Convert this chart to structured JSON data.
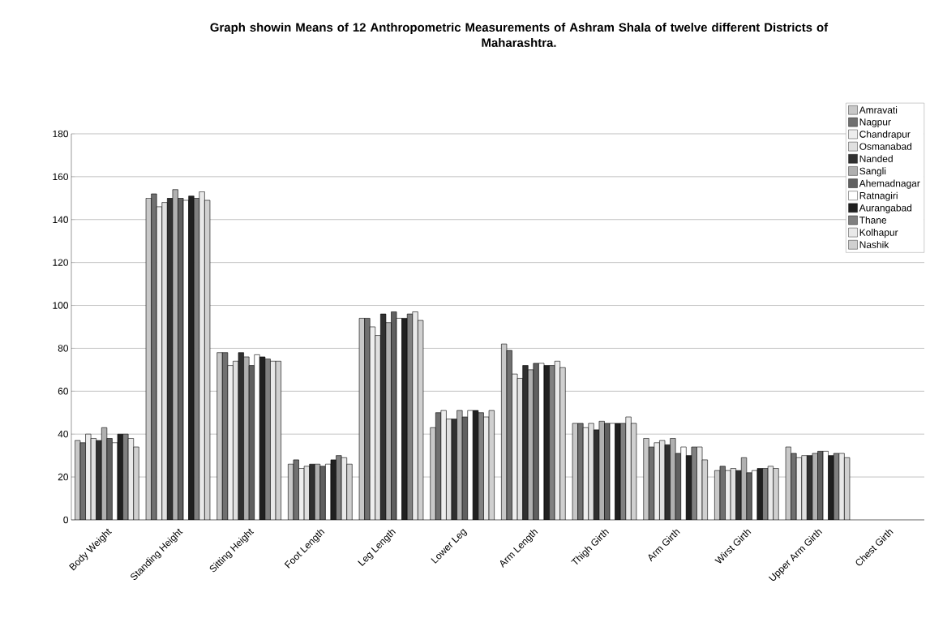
{
  "chart_data": {
    "type": "bar",
    "title": "Graph showin Means of 12 Anthropometric Measurements of  Ashram Shala of twelve different Districts of Maharashtra.",
    "categories": [
      "Body Weight",
      "Standing Height",
      "Sitting Height",
      "Foot Length",
      "Leg Length",
      "Lower Leg",
      "Arm Length",
      "Thigh Girth",
      "Arm Girth",
      "Wirst Girth",
      "Upper Arm Girth",
      "Chest Girth"
    ],
    "series": [
      {
        "name": "Amravati",
        "color": "#c8c8c8",
        "values": [
          37,
          150,
          78,
          26,
          94,
          43,
          82,
          45,
          38,
          23,
          34,
          null
        ]
      },
      {
        "name": "Nagpur",
        "color": "#707070",
        "values": [
          36,
          152,
          78,
          28,
          94,
          50,
          79,
          45,
          34,
          25,
          31,
          null
        ]
      },
      {
        "name": "Chandrapur",
        "color": "#eeeeee",
        "values": [
          40,
          146,
          72,
          24,
          90,
          51,
          68,
          43,
          36,
          23,
          29,
          null
        ]
      },
      {
        "name": "Osmanabad",
        "color": "#e0e0e0",
        "values": [
          38,
          148,
          74,
          25,
          86,
          47,
          66,
          45,
          37,
          24,
          30,
          null
        ]
      },
      {
        "name": "Nanded",
        "color": "#303030",
        "values": [
          37,
          150,
          78,
          26,
          96,
          47,
          72,
          42,
          35,
          23,
          30,
          null
        ]
      },
      {
        "name": "Sangli",
        "color": "#b0b0b0",
        "values": [
          43,
          154,
          76,
          26,
          92,
          51,
          70,
          46,
          38,
          29,
          31,
          null
        ]
      },
      {
        "name": "Ahemadnagar",
        "color": "#606060",
        "values": [
          38,
          150,
          72,
          25,
          97,
          48,
          73,
          45,
          31,
          22,
          32,
          null
        ]
      },
      {
        "name": "Ratnagiri",
        "color": "#ffffff",
        "values": [
          36,
          149,
          77,
          26,
          94,
          51,
          73,
          45,
          34,
          23,
          32,
          null
        ]
      },
      {
        "name": "Aurangabad",
        "color": "#202020",
        "values": [
          40,
          151,
          76,
          28,
          94,
          51,
          72,
          45,
          30,
          24,
          30,
          null
        ]
      },
      {
        "name": "Thane",
        "color": "#808080",
        "values": [
          40,
          150,
          75,
          30,
          96,
          50,
          72,
          45,
          34,
          24,
          31,
          null
        ]
      },
      {
        "name": "Kolhapur",
        "color": "#e9e9e9",
        "values": [
          38,
          153,
          74,
          29,
          97,
          48,
          74,
          48,
          34,
          25,
          31,
          null
        ]
      },
      {
        "name": "Nashik",
        "color": "#d0d0d0",
        "values": [
          34,
          149,
          74,
          26,
          93,
          51,
          71,
          45,
          28,
          24,
          29,
          null
        ]
      }
    ],
    "ylim": [
      0,
      180
    ],
    "yticks": [
      0,
      20,
      40,
      60,
      80,
      100,
      120,
      140,
      160,
      180
    ],
    "grid": "y",
    "legend": "top right"
  }
}
